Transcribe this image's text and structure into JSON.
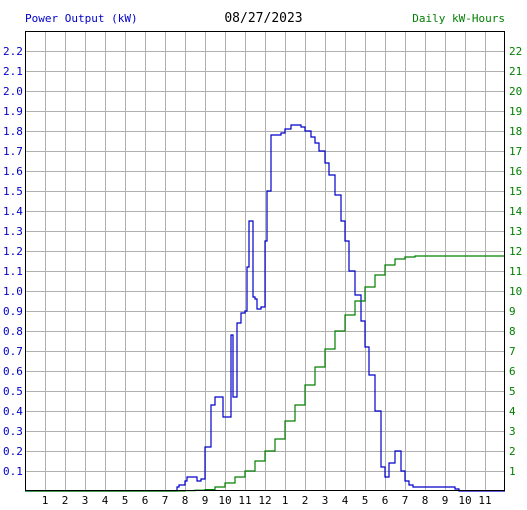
{
  "chart_data": {
    "type": "line",
    "title": "08/27/2023",
    "ylabel": "Power Output (kW)",
    "y2label": "Daily kW-Hours",
    "x_unit": "hour of day",
    "xlim": [
      0,
      24
    ],
    "ylim": [
      0,
      2.3
    ],
    "y2lim": [
      0,
      23
    ],
    "x_ticks": [
      1,
      2,
      3,
      4,
      5,
      6,
      7,
      8,
      9,
      10,
      11,
      12,
      13,
      14,
      15,
      16,
      17,
      18,
      19,
      20,
      21,
      22,
      23
    ],
    "x_tick_labels": [
      "1",
      "2",
      "3",
      "4",
      "5",
      "6",
      "7",
      "8",
      "9",
      "10",
      "11",
      "12",
      "1",
      "2",
      "3",
      "4",
      "5",
      "6",
      "7",
      "8",
      "9",
      "10",
      "11"
    ],
    "y_ticks": [
      "0.1",
      "0.2",
      "0.3",
      "0.4",
      "0.5",
      "0.6",
      "0.7",
      "0.8",
      "0.9",
      "1.0",
      "1.1",
      "1.2",
      "1.3",
      "1.4",
      "1.5",
      "1.6",
      "1.7",
      "1.8",
      "1.9",
      "2.0",
      "2.1",
      "2.2"
    ],
    "y2_ticks": [
      "1",
      "2",
      "3",
      "4",
      "5",
      "6",
      "7",
      "8",
      "9",
      "10",
      "11",
      "12",
      "13",
      "14",
      "15",
      "16",
      "17",
      "18",
      "19",
      "20",
      "21",
      "22"
    ],
    "grid": true,
    "colors": {
      "power": "#0000cc",
      "energy": "#008000",
      "grid": "#b0b0b0",
      "frame": "#000000"
    },
    "series": [
      {
        "axis": "left",
        "x": [
          0,
          7.5,
          7.6,
          7.7,
          7.8,
          8.0,
          8.1,
          8.5,
          8.6,
          8.8,
          9.0,
          9.3,
          9.5,
          9.6,
          9.9,
          10.0,
          10.3,
          10.4,
          10.5,
          10.6,
          10.8,
          11.0,
          11.1,
          11.2,
          11.4,
          11.5,
          11.6,
          11.8,
          12.0,
          12.1,
          12.3,
          12.5,
          12.8,
          13.0,
          13.3,
          13.5,
          13.8,
          14.0,
          14.3,
          14.5,
          14.7,
          15.0,
          15.2,
          15.5,
          15.8,
          16.0,
          16.2,
          16.5,
          16.8,
          17.0,
          17.2,
          17.5,
          17.8,
          18.0,
          18.2,
          18.5,
          18.8,
          19.0,
          19.2,
          19.4,
          19.6,
          19.8,
          20.0,
          20.3,
          20.5,
          21.0,
          21.5,
          21.6,
          21.7,
          24
        ],
        "values": [
          0,
          0,
          0.02,
          0.03,
          0.03,
          0.05,
          0.07,
          0.07,
          0.05,
          0.06,
          0.22,
          0.43,
          0.47,
          0.47,
          0.37,
          0.37,
          0.78,
          0.47,
          0.47,
          0.84,
          0.89,
          0.9,
          1.12,
          1.35,
          0.97,
          0.96,
          0.91,
          0.92,
          1.25,
          1.5,
          1.78,
          1.78,
          1.79,
          1.81,
          1.83,
          1.83,
          1.82,
          1.8,
          1.77,
          1.74,
          1.7,
          1.64,
          1.58,
          1.48,
          1.35,
          1.25,
          1.1,
          0.98,
          0.85,
          0.72,
          0.58,
          0.4,
          0.12,
          0.07,
          0.14,
          0.2,
          0.1,
          0.05,
          0.03,
          0.02,
          0.02,
          0.02,
          0.02,
          0.02,
          0.02,
          0.02,
          0.01,
          0.01,
          0,
          0
        ]
      },
      {
        "axis": "right",
        "x": [
          0,
          7.5,
          8.0,
          8.5,
          9.0,
          9.5,
          10.0,
          10.5,
          11.0,
          11.5,
          12.0,
          12.5,
          13.0,
          13.5,
          14.0,
          14.5,
          15.0,
          15.5,
          16.0,
          16.5,
          17.0,
          17.5,
          18.0,
          18.5,
          19.0,
          19.5,
          20.0,
          21.0,
          22.0,
          23.0,
          24.0
        ],
        "values": [
          0,
          0,
          0.02,
          0.04,
          0.07,
          0.2,
          0.4,
          0.7,
          1.0,
          1.5,
          2.0,
          2.6,
          3.5,
          4.3,
          5.3,
          6.2,
          7.1,
          8.0,
          8.8,
          9.5,
          10.2,
          10.8,
          11.3,
          11.6,
          11.7,
          11.75,
          11.75,
          11.75,
          11.75,
          11.75,
          11.75
        ]
      }
    ]
  }
}
